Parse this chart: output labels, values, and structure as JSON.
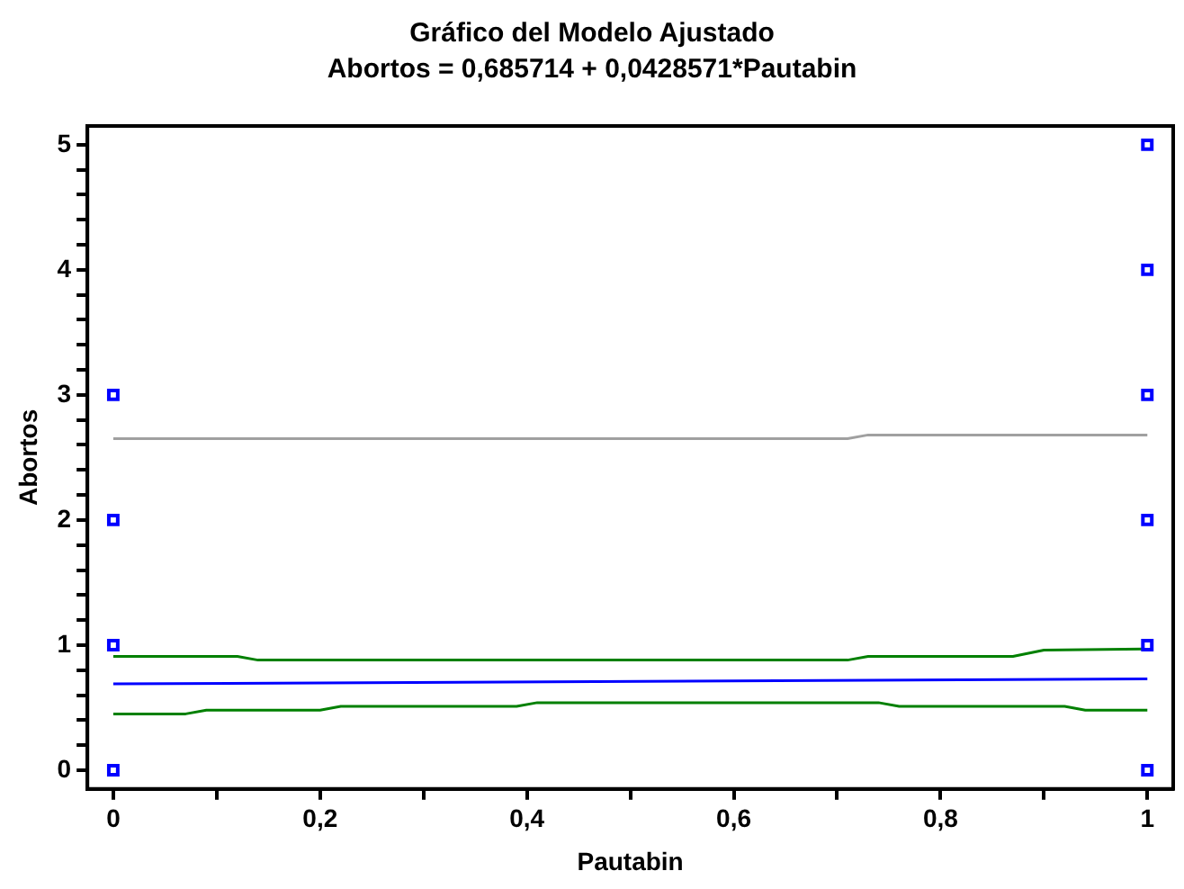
{
  "chart_data": {
    "type": "scatter",
    "title": "Gráfico del Modelo Ajustado",
    "subtitle": "Abortos = 0,685714 + 0,0428571*Pautabin",
    "xlabel": "Pautabin",
    "ylabel": "Abortos",
    "xlim": [
      -0.025,
      1.025
    ],
    "ylim": [
      -0.15,
      5.15
    ],
    "xticks": [
      {
        "value": 0,
        "label": "0"
      },
      {
        "value": 0.1,
        "label": null
      },
      {
        "value": 0.2,
        "label": "0,2"
      },
      {
        "value": 0.3,
        "label": null
      },
      {
        "value": 0.4,
        "label": "0,4"
      },
      {
        "value": 0.5,
        "label": null
      },
      {
        "value": 0.6,
        "label": "0,6"
      },
      {
        "value": 0.7,
        "label": null
      },
      {
        "value": 0.8,
        "label": "0,8"
      },
      {
        "value": 0.9,
        "label": null
      },
      {
        "value": 1,
        "label": "1"
      }
    ],
    "yticks": [
      0,
      {
        "value": 0.2,
        "label": null
      },
      {
        "value": 0.4,
        "label": null
      },
      {
        "value": 0.6,
        "label": null
      },
      {
        "value": 0.8,
        "label": null
      },
      1,
      {
        "value": 1.2,
        "label": null
      },
      {
        "value": 1.4,
        "label": null
      },
      {
        "value": 1.6,
        "label": null
      },
      {
        "value": 1.8,
        "label": null
      },
      2,
      {
        "value": 2.2,
        "label": null
      },
      {
        "value": 2.4,
        "label": null
      },
      {
        "value": 2.6,
        "label": null
      },
      {
        "value": 2.8,
        "label": null
      },
      3,
      {
        "value": 3.2,
        "label": null
      },
      {
        "value": 3.4,
        "label": null
      },
      {
        "value": 3.6,
        "label": null
      },
      {
        "value": 3.8,
        "label": null
      },
      4,
      {
        "value": 4.2,
        "label": null
      },
      {
        "value": 4.4,
        "label": null
      },
      {
        "value": 4.6,
        "label": null
      },
      {
        "value": 4.8,
        "label": null
      },
      5
    ],
    "grid": false,
    "legend": false,
    "marker": "square",
    "series": [
      {
        "color": "#0000ff",
        "x": [
          0,
          0,
          0,
          0,
          1,
          1,
          1,
          1,
          1,
          1
        ],
        "values": [
          0,
          1,
          2,
          3,
          0,
          1,
          2,
          3,
          4,
          5
        ]
      },
      {
        "type": "line",
        "marker": "none",
        "color": "#a0a0a0",
        "x": [
          0,
          0.5,
          0.71,
          0.73,
          1
        ],
        "values": [
          2.65,
          2.65,
          2.65,
          2.68,
          2.68
        ]
      },
      {
        "type": "line",
        "marker": "none",
        "color": "#008000",
        "x": [
          0,
          0.12,
          0.14,
          0.5,
          0.71,
          0.73,
          0.87,
          0.9,
          1
        ],
        "values": [
          0.91,
          0.91,
          0.88,
          0.88,
          0.88,
          0.91,
          0.91,
          0.96,
          0.97
        ]
      },
      {
        "type": "line",
        "marker": "none",
        "color": "#0000ff",
        "x": [
          0,
          1
        ],
        "values": [
          0.69,
          0.73
        ]
      },
      {
        "type": "line",
        "marker": "none",
        "color": "#008000",
        "x": [
          0,
          0.07,
          0.09,
          0.2,
          0.22,
          0.39,
          0.41,
          0.74,
          0.76,
          0.92,
          0.94,
          1
        ],
        "values": [
          0.45,
          0.45,
          0.48,
          0.48,
          0.51,
          0.51,
          0.54,
          0.54,
          0.51,
          0.51,
          0.48,
          0.48
        ]
      }
    ]
  }
}
